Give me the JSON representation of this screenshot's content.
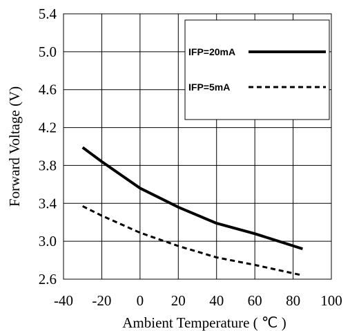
{
  "chart_data": {
    "type": "line",
    "xlabel": "Ambient Temperature ( ℃ )",
    "ylabel": "Forward Voltage (V)",
    "xlim": [
      -40,
      100
    ],
    "ylim": [
      2.6,
      5.4
    ],
    "xticks": [
      -40,
      -20,
      0,
      20,
      40,
      60,
      80,
      100
    ],
    "xtick_labels": [
      "-40",
      "-20",
      "0",
      "20",
      "40",
      "60",
      "80",
      "100"
    ],
    "yticks": [
      2.6,
      3.0,
      3.4,
      3.8,
      4.2,
      4.6,
      5.0,
      5.4
    ],
    "ytick_labels": [
      "2.6",
      "3.0",
      "3.4",
      "3.8",
      "4.2",
      "4.6",
      "5.0",
      "5.4"
    ],
    "grid": true,
    "legend_position": "top-right",
    "series": [
      {
        "name": "IFP=20mA",
        "style": "solid",
        "color": "#000000",
        "x": [
          -30,
          -20,
          0,
          20,
          40,
          60,
          85
        ],
        "y": [
          3.99,
          3.84,
          3.56,
          3.36,
          3.19,
          3.08,
          2.92
        ]
      },
      {
        "name": "IFP=5mA",
        "style": "dashed",
        "color": "#000000",
        "x": [
          -30,
          -20,
          0,
          20,
          40,
          60,
          85
        ],
        "y": [
          3.37,
          3.27,
          3.09,
          2.95,
          2.83,
          2.75,
          2.64
        ]
      }
    ]
  }
}
